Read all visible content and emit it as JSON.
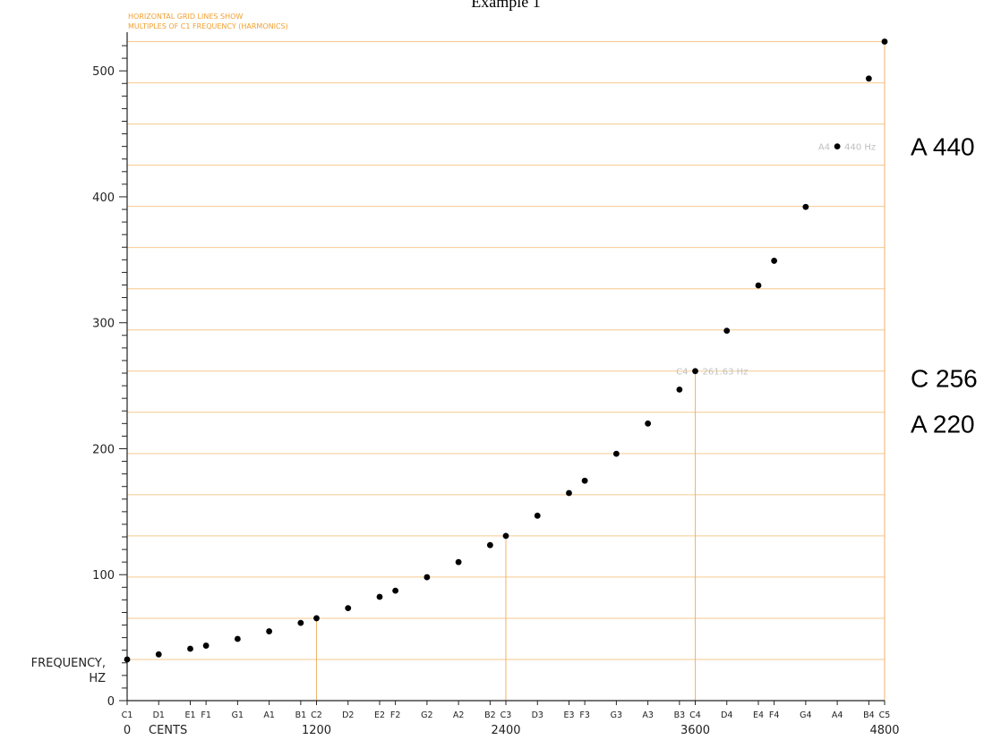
{
  "page": {
    "heading": "Example 1"
  },
  "chart_data": {
    "type": "scatter",
    "title": "",
    "grid_note_lines": [
      "HORIZONTAL GRID LINES SHOW",
      "MULTIPLES OF C1 FREQUENCY (HARMONICS)"
    ],
    "ylabel_lines": [
      "FREQUENCY,",
      "HZ"
    ],
    "xlabel": "CENTS",
    "xlim": [
      0,
      4800
    ],
    "ylim": [
      0,
      525
    ],
    "y_ticks": [
      0,
      100,
      200,
      300,
      400,
      500
    ],
    "y_minor_step": 10,
    "x_ticks": [
      {
        "value": 0,
        "label": "0"
      },
      {
        "value": 1200,
        "label": "1200"
      },
      {
        "value": 2400,
        "label": "2400"
      },
      {
        "value": 3600,
        "label": "3600"
      },
      {
        "value": 4800,
        "label": "4800"
      }
    ],
    "harmonic_base_hz": 32.7,
    "harmonic_gridlines": true,
    "vertical_markers_cents": [
      1200,
      2400,
      3600,
      4800
    ],
    "points": [
      {
        "note": "C1",
        "cents": 0,
        "hz": 32.7
      },
      {
        "note": "D1",
        "cents": 200,
        "hz": 36.71
      },
      {
        "note": "E1",
        "cents": 400,
        "hz": 41.2
      },
      {
        "note": "F1",
        "cents": 500,
        "hz": 43.65
      },
      {
        "note": "G1",
        "cents": 700,
        "hz": 49.0
      },
      {
        "note": "A1",
        "cents": 900,
        "hz": 55.0
      },
      {
        "note": "B1",
        "cents": 1100,
        "hz": 61.74
      },
      {
        "note": "C2",
        "cents": 1200,
        "hz": 65.41
      },
      {
        "note": "D2",
        "cents": 1400,
        "hz": 73.42
      },
      {
        "note": "E2",
        "cents": 1600,
        "hz": 82.41
      },
      {
        "note": "F2",
        "cents": 1700,
        "hz": 87.31
      },
      {
        "note": "G2",
        "cents": 1900,
        "hz": 98.0
      },
      {
        "note": "A2",
        "cents": 2100,
        "hz": 110.0
      },
      {
        "note": "B2",
        "cents": 2300,
        "hz": 123.47
      },
      {
        "note": "C3",
        "cents": 2400,
        "hz": 130.81
      },
      {
        "note": "D3",
        "cents": 2600,
        "hz": 146.83
      },
      {
        "note": "E3",
        "cents": 2800,
        "hz": 164.81
      },
      {
        "note": "F3",
        "cents": 2900,
        "hz": 174.61
      },
      {
        "note": "G3",
        "cents": 3100,
        "hz": 196.0
      },
      {
        "note": "A3",
        "cents": 3300,
        "hz": 220.0
      },
      {
        "note": "B3",
        "cents": 3500,
        "hz": 246.94
      },
      {
        "note": "C4",
        "cents": 3600,
        "hz": 261.63
      },
      {
        "note": "D4",
        "cents": 3800,
        "hz": 293.66
      },
      {
        "note": "E4",
        "cents": 4000,
        "hz": 329.63
      },
      {
        "note": "F4",
        "cents": 4100,
        "hz": 349.23
      },
      {
        "note": "G4",
        "cents": 4300,
        "hz": 392.0
      },
      {
        "note": "A4",
        "cents": 4500,
        "hz": 440.0
      },
      {
        "note": "B4",
        "cents": 4700,
        "hz": 493.88
      },
      {
        "note": "C5",
        "cents": 4800,
        "hz": 523.25
      }
    ],
    "annotations": [
      {
        "note": "A4",
        "text_left": "A4",
        "text_right": "440 Hz",
        "cents": 4500,
        "hz": 440.0
      },
      {
        "note": "C4",
        "text_left": "C4",
        "text_right": "261.63 Hz",
        "cents": 3600,
        "hz": 261.63
      }
    ],
    "side_labels": [
      {
        "text": "A 440",
        "hz": 440
      },
      {
        "text": "C 256",
        "hz": 256
      },
      {
        "text": "A 220",
        "hz": 220
      }
    ],
    "colors": {
      "grid": "#f7c98f",
      "vertical_marker": "#f2b36a",
      "point": "#000000",
      "axis": "#222222",
      "note_text": "#f0a030"
    }
  }
}
